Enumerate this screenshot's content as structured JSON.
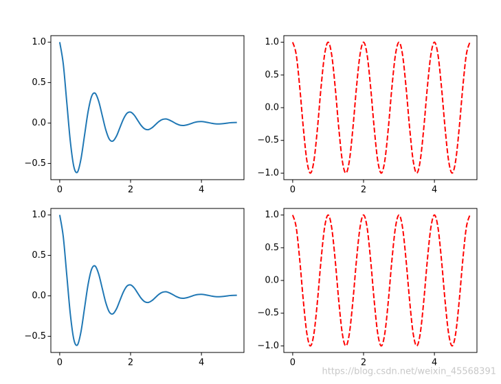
{
  "chart_data": [
    {
      "type": "line",
      "x": [
        0,
        0.1,
        0.2,
        0.3,
        0.4,
        0.5,
        0.6,
        0.7,
        0.8,
        0.9,
        1,
        1.1,
        1.2,
        1.3,
        1.4,
        1.5,
        1.6,
        1.7,
        1.8,
        1.9,
        2,
        2.1,
        2.2,
        2.3,
        2.4,
        2.5,
        2.6,
        2.7,
        2.8,
        2.9,
        3,
        3.1,
        3.2,
        3.3,
        3.4,
        3.5,
        3.6,
        3.7,
        3.8,
        3.9,
        4,
        4.1,
        4.2,
        4.3,
        4.4,
        4.5,
        4.6,
        4.7,
        4.8,
        4.9,
        5
      ],
      "values": [
        1,
        0.732,
        0.253,
        -0.229,
        -0.542,
        -0.607,
        -0.444,
        -0.153,
        0.139,
        0.329,
        0.368,
        0.269,
        0.093,
        -0.084,
        -0.2,
        -0.223,
        -0.163,
        -0.056,
        0.051,
        0.121,
        0.135,
        0.099,
        0.034,
        -0.031,
        -0.073,
        -0.082,
        -0.06,
        -0.021,
        0.019,
        0.044,
        0.05,
        0.036,
        0.013,
        -0.011,
        -0.027,
        -0.03,
        -0.022,
        -0.008,
        0.007,
        0.016,
        0.018,
        0.013,
        0.005,
        -0.004,
        -0.01,
        -0.011,
        -0.008,
        -0.003,
        0.003,
        0.006,
        0.007
      ],
      "color": "#1f77b4",
      "linestyle": "solid",
      "xlim": [
        -0.25,
        5.2
      ],
      "xticks": [
        0,
        2,
        4
      ],
      "ylim": [
        -0.7,
        1.08
      ],
      "yticks": [
        {
          "value": -0.5,
          "label": "−0.5"
        },
        {
          "value": 0,
          "label": "0.0"
        },
        {
          "value": 0.5,
          "label": "0.5"
        },
        {
          "value": 1,
          "label": "1.0"
        }
      ]
    },
    {
      "type": "line",
      "x": [
        0,
        0.1,
        0.2,
        0.3,
        0.4,
        0.5,
        0.6,
        0.7,
        0.8,
        0.9,
        1,
        1.1,
        1.2,
        1.3,
        1.4,
        1.5,
        1.6,
        1.7,
        1.8,
        1.9,
        2,
        2.1,
        2.2,
        2.3,
        2.4,
        2.5,
        2.6,
        2.7,
        2.8,
        2.9,
        3,
        3.1,
        3.2,
        3.3,
        3.4,
        3.5,
        3.6,
        3.7,
        3.8,
        3.9,
        4,
        4.1,
        4.2,
        4.3,
        4.4,
        4.5,
        4.6,
        4.7,
        4.8,
        4.9,
        5
      ],
      "values": [
        1,
        0.809,
        0.309,
        -0.309,
        -0.809,
        -1,
        -0.809,
        -0.309,
        0.309,
        0.809,
        1,
        0.809,
        0.309,
        -0.309,
        -0.809,
        -1,
        -0.809,
        -0.309,
        0.309,
        0.809,
        1,
        0.809,
        0.309,
        -0.309,
        -0.809,
        -1,
        -0.809,
        -0.309,
        0.309,
        0.809,
        1,
        0.809,
        0.309,
        -0.309,
        -0.809,
        -1,
        -0.809,
        -0.309,
        0.309,
        0.809,
        1,
        0.809,
        0.309,
        -0.309,
        -0.809,
        -1,
        -0.809,
        -0.309,
        0.309,
        0.809,
        1
      ],
      "color": "red",
      "linestyle": "dashed",
      "xlim": [
        -0.25,
        5.2
      ],
      "xticks": [
        0,
        2,
        4
      ],
      "ylim": [
        -1.1,
        1.1
      ],
      "yticks": [
        {
          "value": -1,
          "label": "−1.0"
        },
        {
          "value": -0.5,
          "label": "−0.5"
        },
        {
          "value": 0,
          "label": "0.0"
        },
        {
          "value": 0.5,
          "label": "0.5"
        },
        {
          "value": 1,
          "label": "1.0"
        }
      ]
    },
    {
      "type": "line",
      "x": [
        0,
        0.1,
        0.2,
        0.3,
        0.4,
        0.5,
        0.6,
        0.7,
        0.8,
        0.9,
        1,
        1.1,
        1.2,
        1.3,
        1.4,
        1.5,
        1.6,
        1.7,
        1.8,
        1.9,
        2,
        2.1,
        2.2,
        2.3,
        2.4,
        2.5,
        2.6,
        2.7,
        2.8,
        2.9,
        3,
        3.1,
        3.2,
        3.3,
        3.4,
        3.5,
        3.6,
        3.7,
        3.8,
        3.9,
        4,
        4.1,
        4.2,
        4.3,
        4.4,
        4.5,
        4.6,
        4.7,
        4.8,
        4.9,
        5
      ],
      "values": [
        1,
        0.732,
        0.253,
        -0.229,
        -0.542,
        -0.607,
        -0.444,
        -0.153,
        0.139,
        0.329,
        0.368,
        0.269,
        0.093,
        -0.084,
        -0.2,
        -0.223,
        -0.163,
        -0.056,
        0.051,
        0.121,
        0.135,
        0.099,
        0.034,
        -0.031,
        -0.073,
        -0.082,
        -0.06,
        -0.021,
        0.019,
        0.044,
        0.05,
        0.036,
        0.013,
        -0.011,
        -0.027,
        -0.03,
        -0.022,
        -0.008,
        0.007,
        0.016,
        0.018,
        0.013,
        0.005,
        -0.004,
        -0.01,
        -0.011,
        -0.008,
        -0.003,
        0.003,
        0.006,
        0.007
      ],
      "color": "#1f77b4",
      "linestyle": "solid",
      "xlim": [
        -0.25,
        5.2
      ],
      "xticks": [
        0,
        2,
        4
      ],
      "ylim": [
        -0.7,
        1.08
      ],
      "yticks": [
        {
          "value": -0.5,
          "label": "−0.5"
        },
        {
          "value": 0,
          "label": "0.0"
        },
        {
          "value": 0.5,
          "label": "0.5"
        },
        {
          "value": 1,
          "label": "1.0"
        }
      ]
    },
    {
      "type": "line",
      "x": [
        0,
        0.1,
        0.2,
        0.3,
        0.4,
        0.5,
        0.6,
        0.7,
        0.8,
        0.9,
        1,
        1.1,
        1.2,
        1.3,
        1.4,
        1.5,
        1.6,
        1.7,
        1.8,
        1.9,
        2,
        2.1,
        2.2,
        2.3,
        2.4,
        2.5,
        2.6,
        2.7,
        2.8,
        2.9,
        3,
        3.1,
        3.2,
        3.3,
        3.4,
        3.5,
        3.6,
        3.7,
        3.8,
        3.9,
        4,
        4.1,
        4.2,
        4.3,
        4.4,
        4.5,
        4.6,
        4.7,
        4.8,
        4.9,
        5
      ],
      "values": [
        1,
        0.809,
        0.309,
        -0.309,
        -0.809,
        -1,
        -0.809,
        -0.309,
        0.309,
        0.809,
        1,
        0.809,
        0.309,
        -0.309,
        -0.809,
        -1,
        -0.809,
        -0.309,
        0.309,
        0.809,
        1,
        0.809,
        0.309,
        -0.309,
        -0.809,
        -1,
        -0.809,
        -0.309,
        0.309,
        0.809,
        1,
        0.809,
        0.309,
        -0.309,
        -0.809,
        -1,
        -0.809,
        -0.309,
        0.309,
        0.809,
        1,
        0.809,
        0.309,
        -0.309,
        -0.809,
        -1,
        -0.809,
        -0.309,
        0.309,
        0.809,
        1
      ],
      "color": "red",
      "linestyle": "dashed",
      "xlim": [
        -0.25,
        5.2
      ],
      "xticks": [
        0,
        2,
        4
      ],
      "ylim": [
        -1.1,
        1.1
      ],
      "yticks": [
        {
          "value": -1,
          "label": "−1.0"
        },
        {
          "value": -0.5,
          "label": "−0.5"
        },
        {
          "value": 0,
          "label": "0.0"
        },
        {
          "value": 0.5,
          "label": "0.5"
        },
        {
          "value": 1,
          "label": "1.0"
        }
      ]
    }
  ],
  "watermark": "https://blog.csdn.net/weixin_45568391"
}
